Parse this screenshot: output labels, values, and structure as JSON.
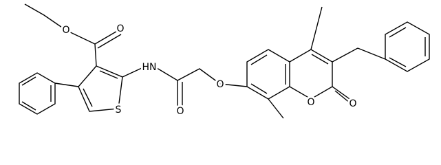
{
  "atoms": [
    {
      "label": "O"
    },
    {
      "label": "O"
    },
    {
      "label": "HN"
    },
    {
      "label": "S"
    },
    {
      "label": "O"
    },
    {
      "label": "O"
    },
    {
      "label": "O"
    },
    {
      "label": "O"
    }
  ]
}
